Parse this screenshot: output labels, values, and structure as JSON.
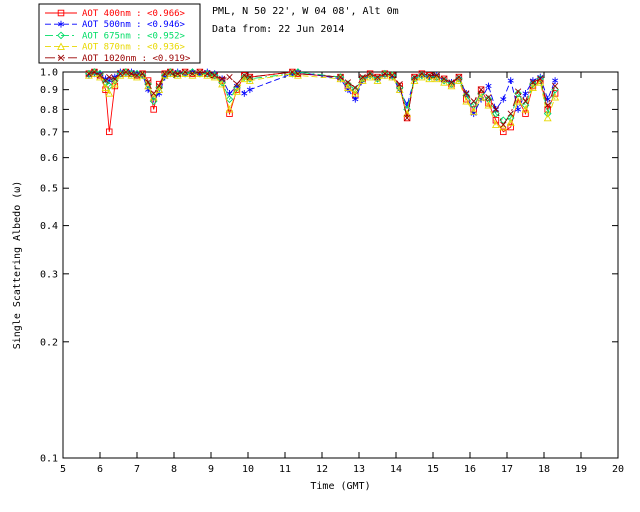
{
  "header": {
    "site_line": "PML, N 50 22', W 04 08', Alt 0m",
    "date_line": "Data from: 22 Jun 2014"
  },
  "legend": {
    "items": [
      {
        "label": "AOT  400nm",
        "value": "<0.966>"
      },
      {
        "label": "AOT  500nm",
        "value": "<0.946>"
      },
      {
        "label": "AOT  675nm",
        "value": "<0.952>"
      },
      {
        "label": "AOT  870nm",
        "value": "<0.936>"
      },
      {
        "label": "AOT 1020nm",
        "value": "<0.919>"
      }
    ]
  },
  "chart_data": {
    "type": "line",
    "title": "",
    "xlabel": "Time (GMT)",
    "ylabel": "Single Scattering Albedo (ω)",
    "xlim": [
      5,
      20
    ],
    "ylim": [
      0.1,
      1.0
    ],
    "yscale": "log",
    "grid": false,
    "legend_position": "top-left",
    "xticks": [
      5,
      6,
      7,
      8,
      9,
      10,
      11,
      12,
      13,
      14,
      15,
      16,
      17,
      18,
      19,
      20
    ],
    "yticks": [
      1.0,
      0.9,
      0.8,
      0.7,
      0.6,
      0.5,
      0.4,
      0.3,
      0.2,
      0.1
    ],
    "x": [
      5.7,
      5.85,
      6.0,
      6.15,
      6.25,
      6.4,
      6.55,
      6.7,
      6.85,
      7.0,
      7.15,
      7.3,
      7.45,
      7.6,
      7.75,
      7.9,
      8.1,
      8.3,
      8.5,
      8.7,
      8.9,
      9.1,
      9.3,
      9.5,
      9.7,
      9.9,
      10.05,
      11.2,
      11.35,
      12.5,
      12.7,
      12.9,
      13.1,
      13.3,
      13.5,
      13.7,
      13.9,
      14.1,
      14.3,
      14.5,
      14.7,
      14.9,
      15.1,
      15.3,
      15.5,
      15.7,
      15.9,
      16.1,
      16.3,
      16.5,
      16.7,
      16.9,
      17.1,
      17.3,
      17.5,
      17.7,
      17.9,
      18.1,
      18.3
    ],
    "series": [
      {
        "name": "AOT 400nm",
        "mean": "<0.966>",
        "color": "#ff0000",
        "marker": "square",
        "linestyle": "solid",
        "values": [
          0.99,
          1.0,
          0.98,
          0.9,
          0.7,
          0.92,
          0.99,
          1.0,
          0.99,
          0.98,
          0.99,
          0.95,
          0.8,
          0.93,
          0.99,
          1.0,
          0.99,
          1.0,
          0.99,
          1.0,
          0.99,
          0.98,
          0.95,
          0.78,
          0.9,
          0.98,
          0.97,
          1.0,
          0.99,
          0.97,
          0.92,
          0.87,
          0.96,
          0.99,
          0.97,
          0.99,
          0.98,
          0.92,
          0.76,
          0.97,
          0.99,
          0.98,
          0.97,
          0.96,
          0.93,
          0.97,
          0.85,
          0.8,
          0.9,
          0.83,
          0.75,
          0.7,
          0.72,
          0.85,
          0.78,
          0.92,
          0.95,
          0.8,
          0.88
        ]
      },
      {
        "name": "AOT 500nm",
        "mean": "<0.946>",
        "color": "#0000ff",
        "marker": "asterisk",
        "linestyle": "dash",
        "values": [
          0.98,
          0.99,
          0.99,
          0.96,
          0.95,
          0.97,
          1.0,
          0.99,
          1.0,
          0.99,
          0.98,
          0.9,
          0.85,
          0.88,
          0.97,
          0.99,
          1.0,
          0.99,
          1.0,
          0.99,
          1.0,
          0.99,
          0.96,
          0.88,
          0.92,
          0.88,
          0.9,
          0.99,
          1.0,
          0.96,
          0.9,
          0.85,
          0.95,
          0.98,
          0.96,
          0.98,
          0.97,
          0.9,
          0.82,
          0.96,
          0.98,
          0.97,
          0.98,
          0.95,
          0.94,
          0.96,
          0.88,
          0.78,
          0.85,
          0.92,
          0.8,
          0.85,
          0.95,
          0.8,
          0.88,
          0.95,
          0.97,
          0.85,
          0.95
        ]
      },
      {
        "name": "AOT 675nm",
        "mean": "<0.952>",
        "color": "#00dd66",
        "marker": "diamond",
        "linestyle": "dash-dot",
        "values": [
          0.99,
          1.0,
          0.99,
          0.94,
          0.92,
          0.95,
          0.99,
          1.0,
          0.99,
          0.99,
          0.98,
          0.93,
          0.84,
          0.91,
          0.98,
          1.0,
          0.99,
          0.99,
          1.0,
          0.99,
          0.99,
          0.98,
          0.94,
          0.85,
          0.91,
          0.97,
          0.96,
          0.99,
          1.0,
          0.97,
          0.93,
          0.9,
          0.96,
          0.98,
          0.96,
          0.99,
          0.98,
          0.91,
          0.8,
          0.96,
          0.98,
          0.97,
          0.97,
          0.95,
          0.93,
          0.96,
          0.87,
          0.82,
          0.88,
          0.85,
          0.78,
          0.75,
          0.76,
          0.88,
          0.82,
          0.93,
          0.96,
          0.78,
          0.9
        ]
      },
      {
        "name": "AOT 870nm",
        "mean": "<0.936>",
        "color": "#e8d800",
        "marker": "triangle",
        "linestyle": "dash",
        "values": [
          0.98,
          0.99,
          0.97,
          0.91,
          0.88,
          0.93,
          0.98,
          0.99,
          0.98,
          0.97,
          0.98,
          0.92,
          0.86,
          0.9,
          0.98,
          0.99,
          0.98,
          0.99,
          0.98,
          0.99,
          0.98,
          0.97,
          0.93,
          0.8,
          0.89,
          0.96,
          0.95,
          0.99,
          0.98,
          0.96,
          0.91,
          0.88,
          0.95,
          0.97,
          0.95,
          0.98,
          0.97,
          0.9,
          0.78,
          0.95,
          0.97,
          0.96,
          0.96,
          0.94,
          0.92,
          0.95,
          0.84,
          0.79,
          0.86,
          0.82,
          0.73,
          0.72,
          0.74,
          0.84,
          0.8,
          0.91,
          0.94,
          0.76,
          0.86
        ]
      },
      {
        "name": "AOT 1020nm",
        "mean": "<0.919>",
        "color": "#990000",
        "marker": "x",
        "linestyle": "dash-dot-dot",
        "values": [
          0.99,
          1.0,
          0.98,
          0.95,
          0.97,
          0.96,
          0.99,
          1.0,
          0.99,
          0.98,
          0.99,
          0.94,
          0.88,
          0.92,
          0.99,
          1.0,
          0.99,
          1.0,
          0.99,
          1.0,
          0.99,
          0.98,
          0.96,
          0.97,
          0.93,
          0.98,
          0.97,
          1.0,
          0.99,
          0.97,
          0.94,
          0.91,
          0.97,
          0.99,
          0.97,
          0.99,
          0.98,
          0.93,
          0.76,
          0.97,
          0.99,
          0.98,
          0.98,
          0.96,
          0.94,
          0.97,
          0.88,
          0.84,
          0.9,
          0.86,
          0.8,
          0.73,
          0.78,
          0.89,
          0.84,
          0.94,
          0.96,
          0.82,
          0.92
        ]
      }
    ]
  }
}
